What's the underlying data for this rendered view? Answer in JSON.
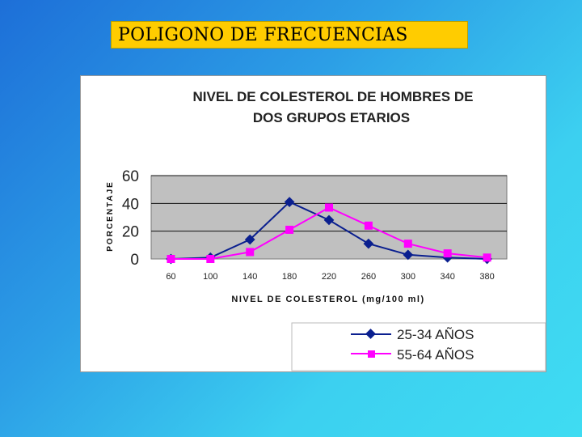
{
  "slide": {
    "title": "POLIGONO DE FRECUENCIAS"
  },
  "chart_data": {
    "type": "line",
    "title_lines": [
      "NIVEL DE COLESTEROL DE HOMBRES DE",
      "DOS GRUPOS ETARIOS"
    ],
    "xlabel": "NIVEL DE COLESTEROL (mg/100 ml)",
    "ylabel": "PORCENTAJE",
    "categories": [
      "60",
      "100",
      "140",
      "180",
      "220",
      "260",
      "300",
      "340",
      "380"
    ],
    "yticks": [
      0,
      20,
      40,
      60
    ],
    "ylim": [
      0,
      60
    ],
    "grid": true,
    "legend_position": "bottom-right",
    "series": [
      {
        "name": "25-34 AÑOS",
        "color": "#0a1f8f",
        "marker": "diamond",
        "values": [
          0,
          1,
          14,
          41,
          28,
          11,
          3,
          1,
          0
        ]
      },
      {
        "name": "55-64 AÑOS",
        "color": "#ff00ff",
        "marker": "square",
        "values": [
          0,
          0,
          5,
          21,
          37,
          24,
          11,
          4,
          1
        ]
      }
    ]
  }
}
